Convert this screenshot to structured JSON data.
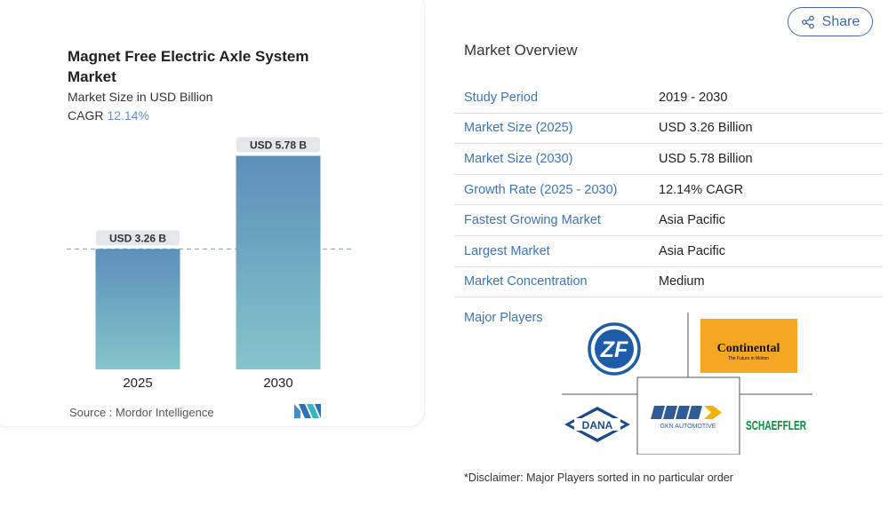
{
  "chart": {
    "title": "Magnet Free Electric Axle System Market",
    "subtitle": "Market Size in USD Billion",
    "cagr_label": "CAGR",
    "cagr_value": "12.14%",
    "source": "Source :  Mordor Intelligence"
  },
  "chart_data": {
    "type": "bar",
    "title": "Magnet Free Electric Axle System Market",
    "categories": [
      "2025",
      "2030"
    ],
    "values": [
      3.26,
      5.78
    ],
    "data_labels": [
      "USD 3.26 B",
      "USD 5.78 B"
    ],
    "ylabel": "Market Size in USD Billion",
    "ylim": [
      0,
      6.2
    ],
    "grid": false,
    "reference_line": 3.26,
    "colors": {
      "bar_top": "#5b8fba",
      "bar_bottom": "#84c5cb",
      "label_bg": "#e3e7eb"
    }
  },
  "share": {
    "label": "Share",
    "icon": "share-icon"
  },
  "overview": {
    "title": "Market Overview",
    "rows": [
      {
        "key": "Study Period",
        "value": "2019 - 2030"
      },
      {
        "key": "Market Size (2025)",
        "value": "USD 3.26 Billion"
      },
      {
        "key": "Market Size (2030)",
        "value": "USD 5.78 Billion"
      },
      {
        "key": "Growth Rate (2025 - 2030)",
        "value": "12.14% CAGR"
      },
      {
        "key": "Fastest Growing Market",
        "value": "Asia Pacific"
      },
      {
        "key": "Largest Market",
        "value": "Asia Pacific"
      },
      {
        "key": "Market Concentration",
        "value": "Medium"
      }
    ],
    "players_label": "Major Players",
    "players": [
      {
        "name": "ZF",
        "logo_text": "ZF"
      },
      {
        "name": "Continental",
        "logo_text": "Continental",
        "logo_subtext": "The Future in Motion"
      },
      {
        "name": "Dana",
        "logo_text": "DANA"
      },
      {
        "name": "GKN Automotive",
        "logo_text": "GKN AUTOMOTIVE"
      },
      {
        "name": "Schaeffler",
        "logo_text": "SCHAEFFLER"
      }
    ],
    "disclaimer": "*Disclaimer: Major Players sorted in no particular order"
  },
  "colors": {
    "accent": "#3f74b3",
    "continental_orange": "#f5a623",
    "zf_blue": "#1c5ca8",
    "schaeffler_green": "#0a8a3a"
  }
}
